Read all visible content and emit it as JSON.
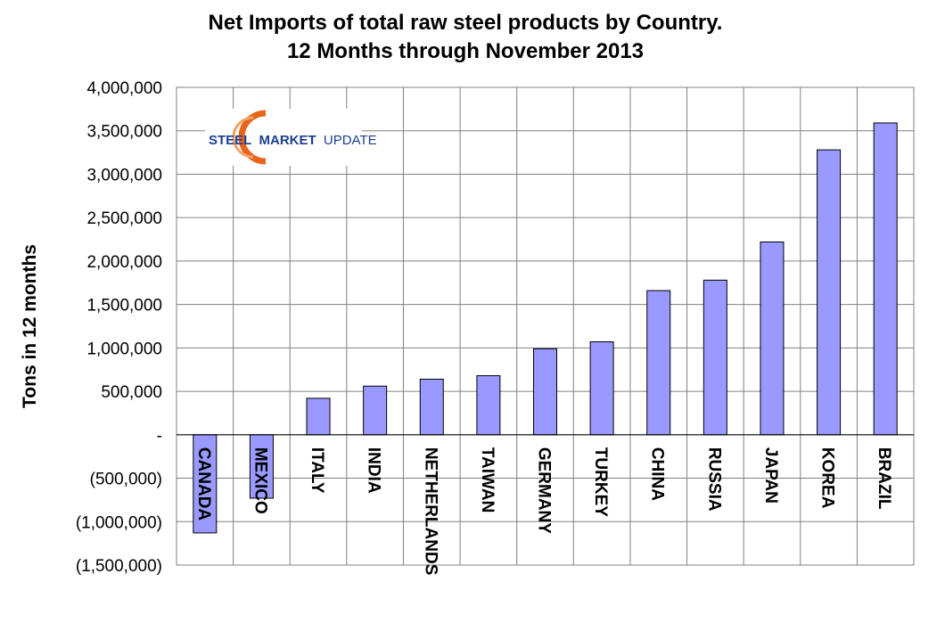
{
  "chart_data": {
    "type": "bar",
    "title": "Net Imports of total raw steel products by Country.",
    "subtitle": "12 Months through November 2013",
    "xlabel": "",
    "ylabel": "Tons in 12 months",
    "ylim": [
      -1500000,
      4000000
    ],
    "grid": true,
    "bar_color": "#9999ff",
    "y_ticks": [
      {
        "value": 4000000,
        "label": "4,000,000"
      },
      {
        "value": 3500000,
        "label": "3,500,000"
      },
      {
        "value": 3000000,
        "label": "3,000,000"
      },
      {
        "value": 2500000,
        "label": "2,500,000"
      },
      {
        "value": 2000000,
        "label": "2,000,000"
      },
      {
        "value": 1500000,
        "label": "1,500,000"
      },
      {
        "value": 1000000,
        "label": "1,000,000"
      },
      {
        "value": 500000,
        "label": "500,000"
      },
      {
        "value": 0,
        "label": "-"
      },
      {
        "value": -500000,
        "label": "(500,000)"
      },
      {
        "value": -1000000,
        "label": "(1,000,000)"
      },
      {
        "value": -1500000,
        "label": "(1,500,000)"
      }
    ],
    "categories": [
      "CANADA",
      "MEXICO",
      "ITALY",
      "INDIA",
      "NETHERLANDS",
      "TAIWAN",
      "GERMANY",
      "TURKEY",
      "CHINA",
      "RUSSIA",
      "JAPAN",
      "KOREA",
      "BRAZIL"
    ],
    "values": [
      -1130000,
      -730000,
      420000,
      560000,
      640000,
      680000,
      990000,
      1070000,
      1660000,
      1780000,
      2220000,
      3280000,
      3590000
    ]
  },
  "logo": {
    "word1": "STEEL",
    "word2": "MARKET",
    "word3": "UPDATE",
    "color_dark": "#1a3f8f",
    "color_accent": "#e8661c"
  }
}
